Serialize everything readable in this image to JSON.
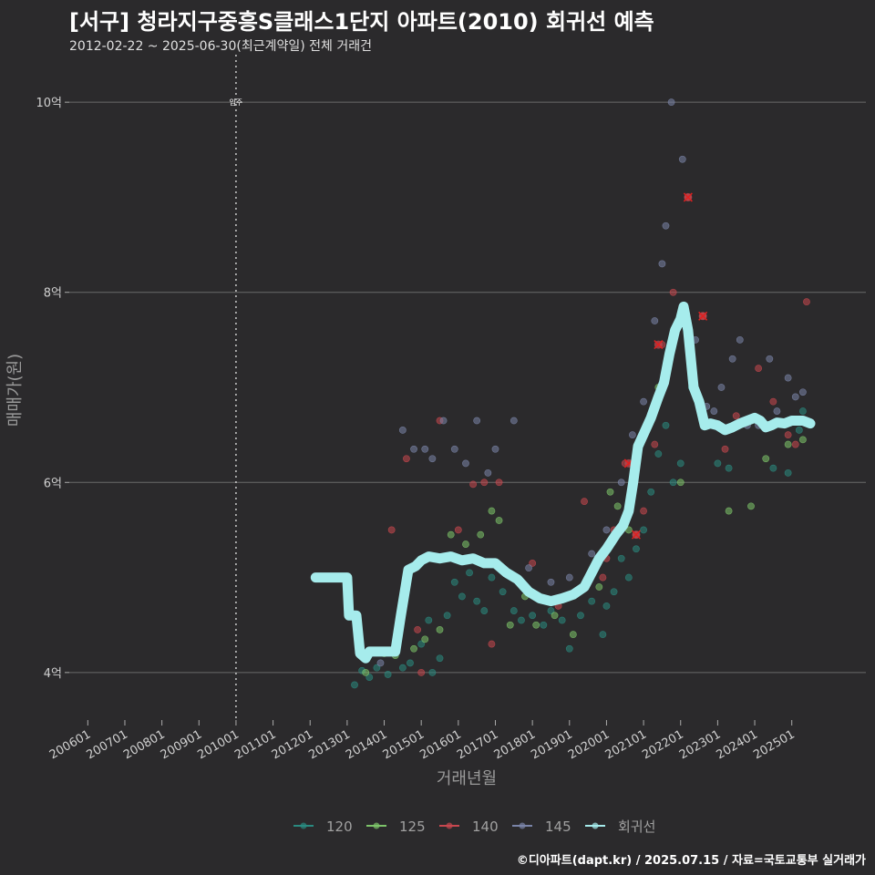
{
  "title": "[서구] 청라지구중흥S클래스1단지 아파트(2010) 회귀선 예측",
  "subtitle": "2012-02-22 ~ 2025-06-30(최근계약일) 전체 거래건",
  "credit": "©디아파트(dapt.kr) / 2025.07.15 / 자료=국토교통부 실거래가",
  "chart_data": {
    "type": "scatter",
    "xlabel": "거래년월",
    "ylabel": "매매가(원)",
    "x_range": [
      2005.5,
      2027.0
    ],
    "ylim": [
      3.5,
      10.5
    ],
    "yticks": [
      {
        "v": 4,
        "label": "4억"
      },
      {
        "v": 6,
        "label": "6억"
      },
      {
        "v": 8,
        "label": "8억"
      },
      {
        "v": 10,
        "label": "10억"
      }
    ],
    "xticks": [
      {
        "v": 2006.0,
        "label": "200601"
      },
      {
        "v": 2007.0,
        "label": "200701"
      },
      {
        "v": 2008.0,
        "label": "200801"
      },
      {
        "v": 2009.0,
        "label": "200901"
      },
      {
        "v": 2010.0,
        "label": "201001"
      },
      {
        "v": 2011.0,
        "label": "201101"
      },
      {
        "v": 2012.0,
        "label": "201201"
      },
      {
        "v": 2013.0,
        "label": "201301"
      },
      {
        "v": 2014.0,
        "label": "201401"
      },
      {
        "v": 2015.0,
        "label": "201501"
      },
      {
        "v": 2016.0,
        "label": "201601"
      },
      {
        "v": 2017.0,
        "label": "201701"
      },
      {
        "v": 2018.0,
        "label": "201801"
      },
      {
        "v": 2019.0,
        "label": "201901"
      },
      {
        "v": 2020.0,
        "label": "202001"
      },
      {
        "v": 2021.0,
        "label": "202101"
      },
      {
        "v": 2022.0,
        "label": "202201"
      },
      {
        "v": 2023.0,
        "label": "202301"
      },
      {
        "v": 2024.0,
        "label": "202401"
      },
      {
        "v": 2025.0,
        "label": "202501"
      }
    ],
    "vline": {
      "x": 2010.0,
      "label": "입주"
    },
    "legend": {
      "position": "bottom",
      "items": [
        {
          "name": "120",
          "color": "#2a8a80"
        },
        {
          "name": "125",
          "color": "#7dc46a"
        },
        {
          "name": "140",
          "color": "#c8474f"
        },
        {
          "name": "145",
          "color": "#7a84a8"
        },
        {
          "name": "회귀선",
          "color": "#a6ecec"
        }
      ]
    },
    "regression": {
      "name": "회귀선",
      "color": "#a6ecec",
      "points": [
        [
          2012.15,
          5.0
        ],
        [
          2013.0,
          5.0
        ],
        [
          2013.05,
          4.6
        ],
        [
          2013.25,
          4.6
        ],
        [
          2013.35,
          4.2
        ],
        [
          2013.5,
          4.15
        ],
        [
          2013.6,
          4.22
        ],
        [
          2014.3,
          4.22
        ],
        [
          2014.45,
          4.6
        ],
        [
          2014.65,
          5.08
        ],
        [
          2014.85,
          5.12
        ],
        [
          2015.0,
          5.18
        ],
        [
          2015.2,
          5.22
        ],
        [
          2015.5,
          5.2
        ],
        [
          2015.8,
          5.22
        ],
        [
          2016.1,
          5.18
        ],
        [
          2016.4,
          5.2
        ],
        [
          2016.7,
          5.15
        ],
        [
          2017.0,
          5.15
        ],
        [
          2017.3,
          5.05
        ],
        [
          2017.6,
          4.98
        ],
        [
          2017.9,
          4.85
        ],
        [
          2018.2,
          4.78
        ],
        [
          2018.5,
          4.75
        ],
        [
          2018.8,
          4.78
        ],
        [
          2019.1,
          4.82
        ],
        [
          2019.4,
          4.9
        ],
        [
          2019.6,
          5.05
        ],
        [
          2019.8,
          5.2
        ],
        [
          2020.0,
          5.3
        ],
        [
          2020.25,
          5.45
        ],
        [
          2020.45,
          5.55
        ],
        [
          2020.6,
          5.7
        ],
        [
          2020.72,
          6.0
        ],
        [
          2020.85,
          6.38
        ],
        [
          2021.05,
          6.55
        ],
        [
          2021.2,
          6.68
        ],
        [
          2021.4,
          6.9
        ],
        [
          2021.55,
          7.05
        ],
        [
          2021.7,
          7.35
        ],
        [
          2021.85,
          7.6
        ],
        [
          2022.0,
          7.72
        ],
        [
          2022.08,
          7.85
        ],
        [
          2022.2,
          7.6
        ],
        [
          2022.35,
          7.0
        ],
        [
          2022.5,
          6.85
        ],
        [
          2022.65,
          6.6
        ],
        [
          2022.8,
          6.62
        ],
        [
          2023.0,
          6.6
        ],
        [
          2023.2,
          6.55
        ],
        [
          2023.4,
          6.58
        ],
        [
          2023.6,
          6.62
        ],
        [
          2023.8,
          6.65
        ],
        [
          2024.0,
          6.68
        ],
        [
          2024.15,
          6.65
        ],
        [
          2024.3,
          6.58
        ],
        [
          2024.45,
          6.6
        ],
        [
          2024.6,
          6.63
        ],
        [
          2024.8,
          6.62
        ],
        [
          2025.0,
          6.65
        ],
        [
          2025.3,
          6.65
        ],
        [
          2025.5,
          6.62
        ]
      ]
    },
    "series": [
      {
        "name": "120",
        "color": "#2a8a80",
        "points": [
          [
            2013.2,
            3.87
          ],
          [
            2013.4,
            4.02
          ],
          [
            2013.6,
            3.95
          ],
          [
            2013.8,
            4.05
          ],
          [
            2014.1,
            3.98
          ],
          [
            2014.5,
            4.05
          ],
          [
            2014.7,
            4.1
          ],
          [
            2015.0,
            4.3
          ],
          [
            2015.2,
            4.55
          ],
          [
            2015.3,
            4.0
          ],
          [
            2015.5,
            4.15
          ],
          [
            2015.7,
            4.6
          ],
          [
            2015.9,
            4.95
          ],
          [
            2016.1,
            4.8
          ],
          [
            2016.3,
            5.05
          ],
          [
            2016.5,
            4.75
          ],
          [
            2016.7,
            4.65
          ],
          [
            2016.9,
            5.0
          ],
          [
            2017.2,
            4.85
          ],
          [
            2017.5,
            4.65
          ],
          [
            2017.7,
            4.55
          ],
          [
            2018.0,
            4.6
          ],
          [
            2018.3,
            4.5
          ],
          [
            2018.5,
            4.65
          ],
          [
            2018.8,
            4.55
          ],
          [
            2019.0,
            4.25
          ],
          [
            2019.3,
            4.6
          ],
          [
            2019.6,
            4.75
          ],
          [
            2019.9,
            4.4
          ],
          [
            2020.0,
            4.7
          ],
          [
            2020.2,
            4.85
          ],
          [
            2020.4,
            5.2
          ],
          [
            2020.6,
            5.0
          ],
          [
            2020.8,
            5.3
          ],
          [
            2021.0,
            5.5
          ],
          [
            2021.2,
            5.9
          ],
          [
            2021.4,
            6.3
          ],
          [
            2021.6,
            6.6
          ],
          [
            2021.8,
            6.0
          ],
          [
            2022.0,
            6.2
          ],
          [
            2022.3,
            7.0
          ],
          [
            2023.0,
            6.2
          ],
          [
            2023.3,
            6.15
          ],
          [
            2024.5,
            6.15
          ],
          [
            2024.9,
            6.1
          ],
          [
            2025.2,
            6.55
          ],
          [
            2025.3,
            6.75
          ]
        ]
      },
      {
        "name": "125",
        "color": "#7dc46a",
        "points": [
          [
            2013.5,
            4.0
          ],
          [
            2014.0,
            4.2
          ],
          [
            2014.3,
            4.18
          ],
          [
            2014.8,
            4.25
          ],
          [
            2015.1,
            4.35
          ],
          [
            2015.5,
            4.45
          ],
          [
            2015.8,
            5.45
          ],
          [
            2016.2,
            5.35
          ],
          [
            2016.6,
            5.45
          ],
          [
            2016.9,
            5.7
          ],
          [
            2017.1,
            5.6
          ],
          [
            2017.4,
            4.5
          ],
          [
            2017.8,
            4.8
          ],
          [
            2018.1,
            4.5
          ],
          [
            2018.6,
            4.6
          ],
          [
            2019.1,
            4.4
          ],
          [
            2019.8,
            4.9
          ],
          [
            2020.1,
            5.9
          ],
          [
            2020.3,
            5.75
          ],
          [
            2020.6,
            5.5
          ],
          [
            2021.0,
            6.5
          ],
          [
            2021.4,
            7.0
          ],
          [
            2022.0,
            6.0
          ],
          [
            2023.3,
            5.7
          ],
          [
            2023.9,
            5.75
          ],
          [
            2024.3,
            6.25
          ],
          [
            2024.9,
            6.4
          ],
          [
            2025.3,
            6.45
          ]
        ]
      },
      {
        "name": "140",
        "color": "#c8474f",
        "points": [
          [
            2014.2,
            5.5
          ],
          [
            2014.6,
            6.25
          ],
          [
            2014.9,
            4.45
          ],
          [
            2015.0,
            4.0
          ],
          [
            2015.5,
            6.65
          ],
          [
            2016.0,
            5.5
          ],
          [
            2016.4,
            5.98
          ],
          [
            2016.7,
            6.0
          ],
          [
            2016.9,
            4.3
          ],
          [
            2017.1,
            6.0
          ],
          [
            2018.0,
            5.15
          ],
          [
            2018.7,
            4.7
          ],
          [
            2019.4,
            5.8
          ],
          [
            2019.9,
            5.0
          ],
          [
            2020.0,
            5.2
          ],
          [
            2020.2,
            5.5
          ],
          [
            2020.5,
            6.2
          ],
          [
            2020.8,
            5.45
          ],
          [
            2021.0,
            5.7
          ],
          [
            2021.3,
            6.4
          ],
          [
            2021.5,
            7.45
          ],
          [
            2021.8,
            8.0
          ],
          [
            2022.0,
            7.7
          ],
          [
            2022.2,
            9.0
          ],
          [
            2022.6,
            7.75
          ],
          [
            2023.2,
            6.35
          ],
          [
            2023.5,
            6.7
          ],
          [
            2024.1,
            7.2
          ],
          [
            2024.5,
            6.85
          ],
          [
            2024.9,
            6.5
          ],
          [
            2025.1,
            6.4
          ],
          [
            2025.4,
            7.9
          ]
        ]
      },
      {
        "name": "145",
        "color": "#7a84a8",
        "points": [
          [
            2013.9,
            4.1
          ],
          [
            2014.5,
            6.55
          ],
          [
            2014.8,
            6.35
          ],
          [
            2015.1,
            6.35
          ],
          [
            2015.3,
            6.25
          ],
          [
            2015.6,
            6.65
          ],
          [
            2015.9,
            6.35
          ],
          [
            2016.2,
            6.2
          ],
          [
            2016.5,
            6.65
          ],
          [
            2016.8,
            6.1
          ],
          [
            2017.0,
            6.35
          ],
          [
            2017.5,
            6.65
          ],
          [
            2017.9,
            5.1
          ],
          [
            2018.5,
            4.95
          ],
          [
            2019.0,
            5.0
          ],
          [
            2019.6,
            5.25
          ],
          [
            2020.0,
            5.5
          ],
          [
            2020.4,
            6.0
          ],
          [
            2020.7,
            6.5
          ],
          [
            2021.0,
            6.85
          ],
          [
            2021.3,
            7.7
          ],
          [
            2021.5,
            8.3
          ],
          [
            2021.6,
            8.7
          ],
          [
            2021.75,
            10.0
          ],
          [
            2022.05,
            9.4
          ],
          [
            2022.4,
            7.5
          ],
          [
            2022.7,
            6.8
          ],
          [
            2022.9,
            6.75
          ],
          [
            2023.1,
            7.0
          ],
          [
            2023.4,
            7.3
          ],
          [
            2023.6,
            7.5
          ],
          [
            2023.8,
            6.6
          ],
          [
            2024.1,
            6.6
          ],
          [
            2024.4,
            7.3
          ],
          [
            2024.6,
            6.75
          ],
          [
            2024.9,
            7.1
          ],
          [
            2025.1,
            6.9
          ],
          [
            2025.3,
            6.95
          ]
        ]
      }
    ],
    "highlights": [
      [
        2020.6,
        6.2
      ],
      [
        2020.8,
        5.45
      ],
      [
        2021.4,
        7.45
      ],
      [
        2022.2,
        9.0
      ],
      [
        2022.6,
        7.75
      ]
    ]
  }
}
